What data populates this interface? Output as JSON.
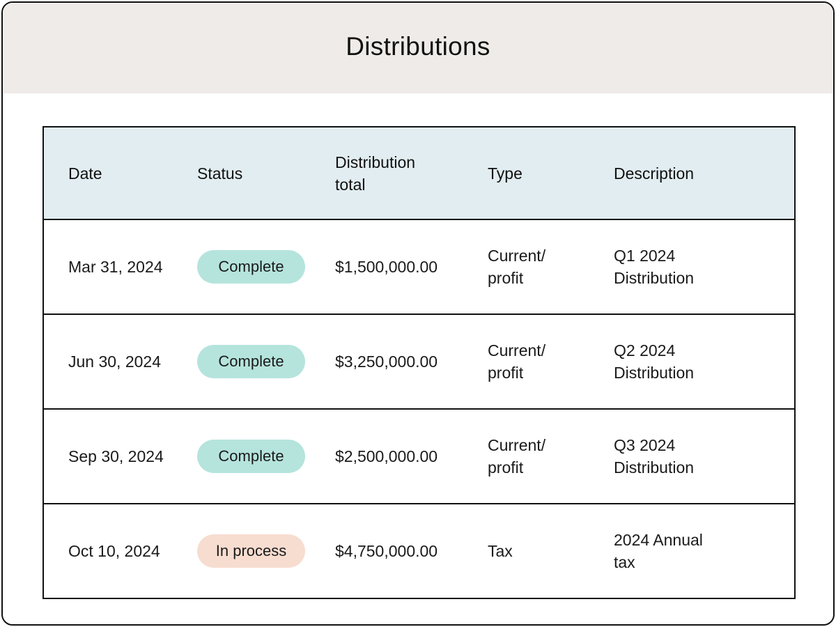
{
  "page": {
    "title": "Distributions"
  },
  "table": {
    "headers": {
      "date": "Date",
      "status": "Status",
      "total_line1": "Distribution",
      "total_line2": "total",
      "type": "Type",
      "description": "Description"
    },
    "rows": [
      {
        "date": "Mar 31, 2024",
        "status": "Complete",
        "total": "$1,500,000.00",
        "type_line1": "Current/",
        "type_line2": "profit",
        "desc_line1": "Q1 2024",
        "desc_line2": "Distribution"
      },
      {
        "date": "Jun 30, 2024",
        "status": "Complete",
        "total": "$3,250,000.00",
        "type_line1": "Current/",
        "type_line2": "profit",
        "desc_line1": "Q2 2024",
        "desc_line2": "Distribution"
      },
      {
        "date": "Sep 30, 2024",
        "status": "Complete",
        "total": "$2,500,000.00",
        "type_line1": "Current/",
        "type_line2": "profit",
        "desc_line1": "Q3 2024",
        "desc_line2": "Distribution"
      },
      {
        "date": "Oct 10, 2024",
        "status": "In process",
        "total": "$4,750,000.00",
        "type_line1": "Tax",
        "type_line2": "",
        "desc_line1": "2024 Annual",
        "desc_line2": "tax"
      }
    ]
  },
  "colors": {
    "header_bg": "#efebe8",
    "table_header_bg": "#e2edf1",
    "status_complete": "#b5e4dd",
    "status_in_process": "#f7ddd0"
  }
}
